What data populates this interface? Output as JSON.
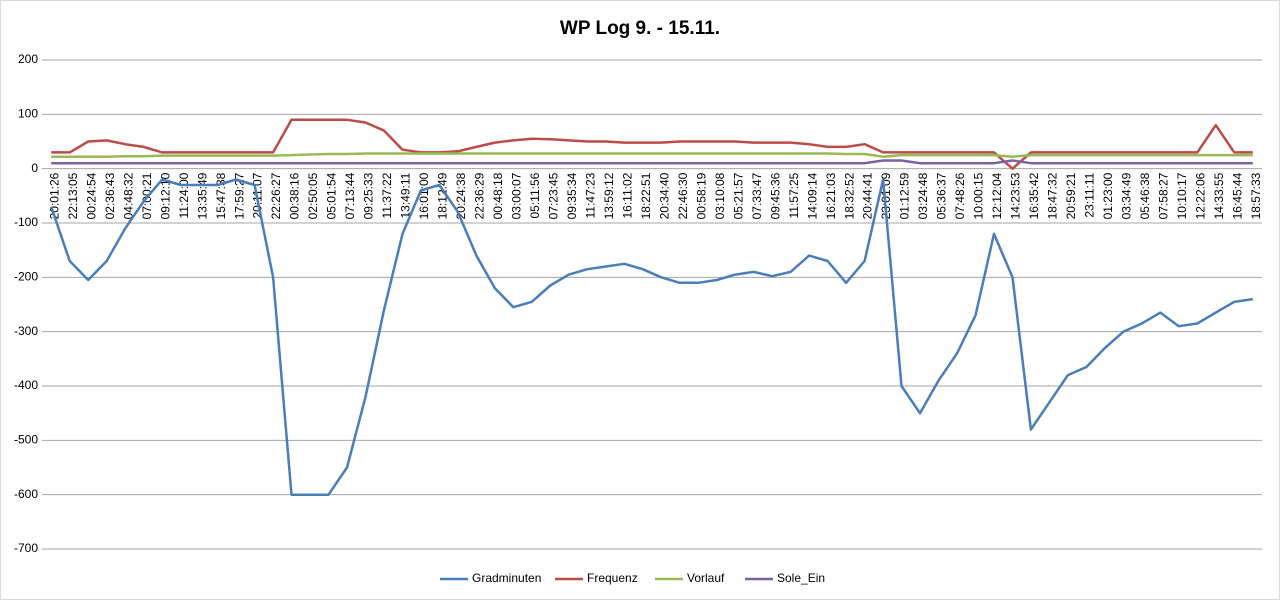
{
  "chart_data": {
    "type": "line",
    "title": "WP Log 9. - 15.11.",
    "categories": [
      "20:01:26",
      "22:13:05",
      "00:24:54",
      "02:36:43",
      "04:48:32",
      "07:00:21",
      "09:12:10",
      "11:24:00",
      "13:35:49",
      "15:47:38",
      "17:59:27",
      "20:11:07",
      "22:26:27",
      "00:38:16",
      "02:50:05",
      "05:01:54",
      "07:13:44",
      "09:25:33",
      "11:37:22",
      "13:49:11",
      "16:01:00",
      "18:12:49",
      "20:24:38",
      "22:36:29",
      "00:48:18",
      "03:00:07",
      "05:11:56",
      "07:23:45",
      "09:35:34",
      "11:47:23",
      "13:59:12",
      "16:11:02",
      "18:22:51",
      "20:34:40",
      "22:46:30",
      "00:58:19",
      "03:10:08",
      "05:21:57",
      "07:33:47",
      "09:45:36",
      "11:57:25",
      "14:09:14",
      "16:21:03",
      "18:32:52",
      "20:44:41",
      "23:01:09",
      "01:12:59",
      "03:24:48",
      "05:36:37",
      "07:48:26",
      "10:00:15",
      "12:12:04",
      "14:23:53",
      "16:35:42",
      "18:47:32",
      "20:59:21",
      "23:11:11",
      "01:23:00",
      "03:34:49",
      "05:46:38",
      "07:58:27",
      "10:10:17",
      "12:22:06",
      "14:33:55",
      "16:45:44",
      "18:57:33"
    ],
    "series": [
      {
        "name": "Gradminuten",
        "color": "#4a7ebb",
        "values": [
          -70,
          -170,
          -205,
          -170,
          -110,
          -60,
          -20,
          -30,
          -30,
          -30,
          -20,
          -30,
          -200,
          -600,
          -600,
          -600,
          -550,
          -420,
          -260,
          -120,
          -40,
          -30,
          -80,
          -160,
          -220,
          -255,
          -245,
          -215,
          -195,
          -185,
          -180,
          -175,
          -185,
          -200,
          -210,
          -210,
          -205,
          -195,
          -190,
          -198,
          -190,
          -160,
          -170,
          -210,
          -170,
          -20,
          -400,
          -450,
          -390,
          -340,
          -270,
          -120,
          -200,
          -480,
          -430,
          -380,
          -365,
          -330,
          -300,
          -285,
          -265,
          -290,
          -285,
          -265,
          -245,
          -240
        ]
      },
      {
        "name": "Frequenz",
        "color": "#be4b48",
        "values": [
          30,
          30,
          50,
          52,
          45,
          40,
          30,
          30,
          30,
          30,
          30,
          30,
          30,
          90,
          90,
          90,
          90,
          85,
          70,
          35,
          30,
          30,
          32,
          40,
          48,
          52,
          55,
          54,
          52,
          50,
          50,
          48,
          48,
          48,
          50,
          50,
          50,
          50,
          48,
          48,
          48,
          45,
          40,
          40,
          45,
          30,
          30,
          30,
          30,
          30,
          30,
          30,
          0,
          30,
          30,
          30,
          30,
          30,
          30,
          30,
          30,
          30,
          30,
          80,
          30,
          30
        ]
      },
      {
        "name": "Vorlauf",
        "color": "#98b954",
        "values": [
          22,
          22,
          22,
          22,
          23,
          23,
          24,
          24,
          24,
          24,
          24,
          24,
          24,
          25,
          26,
          27,
          27,
          28,
          28,
          28,
          28,
          28,
          28,
          28,
          28,
          28,
          28,
          28,
          28,
          28,
          28,
          28,
          28,
          28,
          28,
          28,
          28,
          28,
          28,
          28,
          28,
          28,
          28,
          27,
          27,
          22,
          25,
          25,
          25,
          25,
          25,
          25,
          22,
          25,
          25,
          25,
          25,
          25,
          25,
          25,
          25,
          25,
          25,
          25,
          25,
          25
        ]
      },
      {
        "name": "Sole_Ein",
        "color": "#7d60a0",
        "values": [
          10,
          10,
          10,
          10,
          10,
          10,
          10,
          10,
          10,
          10,
          10,
          10,
          10,
          10,
          10,
          10,
          10,
          10,
          10,
          10,
          10,
          10,
          10,
          10,
          10,
          10,
          10,
          10,
          10,
          10,
          10,
          10,
          10,
          10,
          10,
          10,
          10,
          10,
          10,
          10,
          10,
          10,
          10,
          10,
          10,
          15,
          15,
          10,
          10,
          10,
          10,
          10,
          15,
          10,
          10,
          10,
          10,
          10,
          10,
          10,
          10,
          10,
          10,
          10,
          10,
          10
        ]
      }
    ],
    "ylim": [
      -700,
      200
    ],
    "yticks": [
      -700,
      -600,
      -500,
      -400,
      -300,
      -200,
      -100,
      0,
      100,
      200
    ],
    "grid": true,
    "legend": "bottom"
  }
}
